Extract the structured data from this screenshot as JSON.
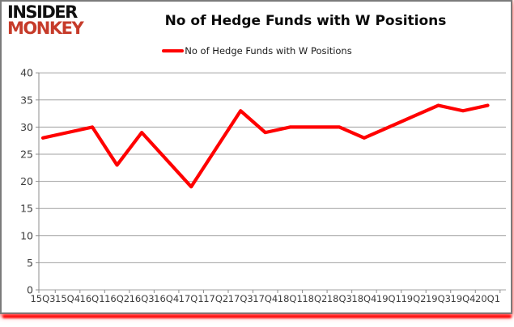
{
  "logo": {
    "line1": "INSIDER",
    "line2": "MONKEY",
    "monkey_color": "#c63b2a"
  },
  "header": {
    "title": "No of Hedge Funds with W Positions"
  },
  "legend": {
    "label": "No of Hedge Funds with W Positions",
    "marker_color": "#ff0000"
  },
  "colors": {
    "line": "#ff0000",
    "grid": "#a0a0a0",
    "axis": "#8c8c8c",
    "tick_label": "#3d3d3d",
    "frame_border": "#7b7b7b",
    "glow": "#ff0000"
  },
  "chart_data": {
    "type": "line",
    "title": "No of Hedge Funds with W Positions",
    "categories": [
      "15Q3",
      "15Q4",
      "16Q1",
      "16Q2",
      "16Q3",
      "16Q4",
      "17Q1",
      "17Q2",
      "17Q3",
      "17Q4",
      "18Q1",
      "18Q2",
      "18Q3",
      "18Q4",
      "19Q1",
      "19Q2",
      "19Q3",
      "19Q4",
      "20Q1"
    ],
    "series": [
      {
        "name": "No of Hedge Funds with W Positions",
        "color": "#ff0000",
        "values": [
          28,
          29,
          30,
          23,
          29,
          24,
          19,
          26,
          33,
          29,
          30,
          30,
          30,
          28,
          30,
          32,
          34,
          33,
          34
        ]
      }
    ],
    "xlabel": "",
    "ylabel": "",
    "ylim": [
      0,
      40
    ],
    "yticks": [
      0,
      5,
      10,
      15,
      20,
      25,
      30,
      35,
      40
    ],
    "grid": "horizontal",
    "legend_position": "top"
  }
}
